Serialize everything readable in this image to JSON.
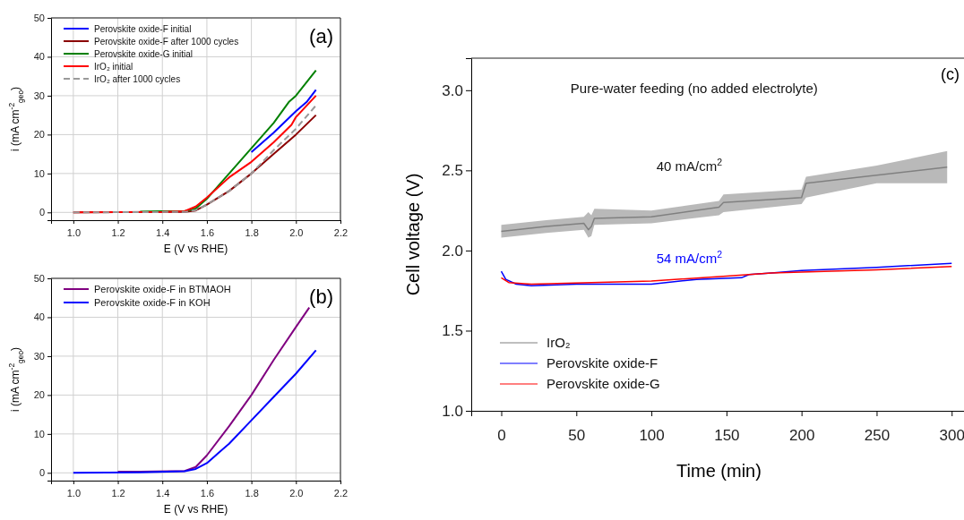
{
  "chart_data": [
    {
      "type": "line",
      "title": "(a)",
      "xlabel": "E (V vs RHE)",
      "ylabel": "i (mA cm$^{-2}$$_{geo}$)",
      "xlim": [
        0.9,
        2.2
      ],
      "ylim": [
        -2,
        50
      ],
      "xticks": [
        {
          "value": 1.0,
          "label": "1.0"
        },
        {
          "value": 1.2,
          "label": "1.2"
        },
        {
          "value": 1.4,
          "label": "1.4"
        },
        {
          "value": 1.6,
          "label": "1.6"
        },
        {
          "value": 1.8,
          "label": "1.8"
        },
        {
          "value": 2.0,
          "label": "2.0"
        },
        {
          "value": 2.2,
          "label": "2.2"
        }
      ],
      "yticks": [
        0,
        10,
        20,
        30,
        40,
        50
      ],
      "grid": true,
      "legend": "top left",
      "series": [
        {
          "name": "Perovskite oxide-F initial",
          "color": "#0000ff",
          "x": [
            1.8,
            1.9,
            2.0,
            2.05,
            2.09
          ],
          "values": [
            15.5,
            20.5,
            26,
            28.5,
            31.5
          ]
        },
        {
          "name": "Perovskite oxide-F after 1000 cycles",
          "color": "#8b0000",
          "x": [
            1.0,
            1.4,
            1.5,
            1.55,
            1.6,
            1.7,
            1.8,
            1.9,
            2.0,
            2.09
          ],
          "values": [
            0,
            0.1,
            0.1,
            0.5,
            2,
            5.5,
            10,
            15,
            20,
            25
          ]
        },
        {
          "name": "Perovskite oxide-G initial",
          "color": "#008000",
          "x": [
            1.3,
            1.4,
            1.5,
            1.55,
            1.6,
            1.7,
            1.8,
            1.9,
            1.97,
            2.0,
            2.09
          ],
          "values": [
            0.2,
            0.3,
            0.3,
            1,
            3.5,
            10,
            16.5,
            23,
            28.5,
            30,
            36.5
          ]
        },
        {
          "name": "IrO₂ initial",
          "color": "#ff0000",
          "x": [
            1.0,
            1.4,
            1.5,
            1.55,
            1.6,
            1.7,
            1.8,
            1.9,
            1.98,
            2.0,
            2.09
          ],
          "values": [
            0,
            0.1,
            0.3,
            1.5,
            3.8,
            9,
            13,
            18,
            22.5,
            24.5,
            30
          ]
        },
        {
          "name": "IrO₂ after 1000 cycles",
          "color": "#999999",
          "line_style": "dashed",
          "x": [
            1.0,
            1.4,
            1.5,
            1.55,
            1.6,
            1.7,
            1.8,
            1.9,
            2.0,
            2.09
          ],
          "values": [
            0,
            0.1,
            0.1,
            0.6,
            2,
            5.5,
            10,
            16,
            21.5,
            27.5
          ]
        }
      ]
    },
    {
      "type": "line",
      "title": "(b)",
      "xlabel": "E (V vs RHE)",
      "ylabel": "i (mA cm$^{-2}$$_{geo}$)",
      "xlim": [
        0.9,
        2.2
      ],
      "ylim": [
        -2,
        50
      ],
      "xticks": [
        {
          "value": 1.0,
          "label": "1.0"
        },
        {
          "value": 1.2,
          "label": "1.2"
        },
        {
          "value": 1.4,
          "label": "1.4"
        },
        {
          "value": 1.6,
          "label": "1.6"
        },
        {
          "value": 1.8,
          "label": "1.8"
        },
        {
          "value": 2.0,
          "label": "2.0"
        },
        {
          "value": 2.2,
          "label": "2.2"
        }
      ],
      "yticks": [
        0,
        10,
        20,
        30,
        40,
        50
      ],
      "grid": true,
      "legend": "top left",
      "series": [
        {
          "name": "Perovskite oxide-F in BTMAOH",
          "color": "#800080",
          "x": [
            1.2,
            1.3,
            1.5,
            1.55,
            1.6,
            1.7,
            1.8,
            1.9,
            2.0,
            2.06
          ],
          "values": [
            0.3,
            0.3,
            0.5,
            1.5,
            4.5,
            12,
            20,
            29,
            37.5,
            42.5
          ]
        },
        {
          "name": "Perovskite oxide-F in KOH",
          "color": "#0000ff",
          "x": [
            1.0,
            1.3,
            1.5,
            1.55,
            1.6,
            1.65,
            1.7,
            1.8,
            1.9,
            2.0,
            2.09
          ],
          "values": [
            0,
            0.1,
            0.4,
            1,
            2.5,
            5,
            7.5,
            13.5,
            19.5,
            25.5,
            31.5
          ]
        }
      ]
    },
    {
      "type": "line",
      "title": "(c)",
      "xlabel": "Time (min)",
      "ylabel": "Cell voltage (V)",
      "xlim": [
        -20,
        310
      ],
      "ylim": [
        1.0,
        3.2
      ],
      "xticks": [
        0,
        50,
        100,
        150,
        200,
        250,
        300
      ],
      "yticks": [
        {
          "value": 1.0,
          "label": "1.0"
        },
        {
          "value": 1.5,
          "label": "1.5"
        },
        {
          "value": 2.0,
          "label": "2.0"
        },
        {
          "value": 2.5,
          "label": "2.5"
        },
        {
          "value": 3.0,
          "label": "3.0"
        }
      ],
      "legend": "bottom left",
      "annotations": [
        "Pure-water feeding (no added electrolyte)",
        "40 mA/cm$^{2}$",
        "54 mA/cm$^{2}$"
      ],
      "series": [
        {
          "name": "IrO₂",
          "color": "#808080",
          "x": [
            0,
            30,
            55,
            58,
            60,
            62,
            100,
            145,
            148,
            200,
            203,
            250,
            297
          ],
          "values": [
            2.12,
            2.15,
            2.17,
            2.13,
            2.15,
            2.2,
            2.21,
            2.27,
            2.3,
            2.33,
            2.42,
            2.47,
            2.52
          ],
          "lower": [
            2.08,
            2.11,
            2.13,
            2.08,
            2.09,
            2.16,
            2.17,
            2.22,
            2.24,
            2.29,
            2.33,
            2.42,
            2.42
          ],
          "upper": [
            2.16,
            2.19,
            2.21,
            2.24,
            2.22,
            2.26,
            2.25,
            2.31,
            2.35,
            2.38,
            2.46,
            2.53,
            2.62
          ]
        },
        {
          "name": "Perovskite oxide-F",
          "color": "#0000ff",
          "x": [
            0,
            3,
            10,
            20,
            50,
            100,
            130,
            160,
            165,
            180,
            200,
            250,
            300
          ],
          "values": [
            1.87,
            1.82,
            1.79,
            1.78,
            1.79,
            1.79,
            1.82,
            1.83,
            1.85,
            1.86,
            1.875,
            1.895,
            1.92
          ]
        },
        {
          "name": "Perovskite oxide-G",
          "color": "#ff0000",
          "x": [
            0,
            5,
            20,
            100,
            150,
            180,
            250,
            300
          ],
          "values": [
            1.83,
            1.8,
            1.79,
            1.81,
            1.84,
            1.86,
            1.88,
            1.9
          ]
        }
      ]
    }
  ]
}
